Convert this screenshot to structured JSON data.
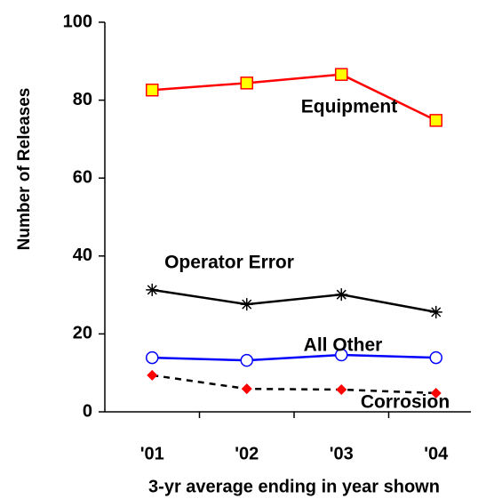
{
  "chart_data": {
    "type": "line",
    "xlabel": "3-yr average ending in year shown",
    "ylabel": "Number of Releases",
    "categories": [
      "'01",
      "'02",
      "'03",
      "'04"
    ],
    "series": [
      {
        "name": "Equipment",
        "color": "#ff0000",
        "marker": "square",
        "values": [
          82.6,
          84.4,
          86.6,
          74.8
        ]
      },
      {
        "name": "Operator Error",
        "color": "#000000",
        "marker": "asterisk",
        "values": [
          31.3,
          27.6,
          30.1,
          25.6
        ]
      },
      {
        "name": "All Other",
        "color": "#0000ff",
        "marker": "circle",
        "values": [
          13.9,
          13.2,
          14.6,
          13.9
        ]
      },
      {
        "name": "Corrosion",
        "color": "#ff0000",
        "marker": "diamond",
        "linecolor": "#000000",
        "dashed": true,
        "values": [
          9.4,
          5.9,
          5.7,
          4.8
        ]
      }
    ],
    "ylim": [
      0,
      100
    ],
    "yticks": [
      0,
      20,
      40,
      60,
      80,
      100
    ],
    "grid": false
  }
}
